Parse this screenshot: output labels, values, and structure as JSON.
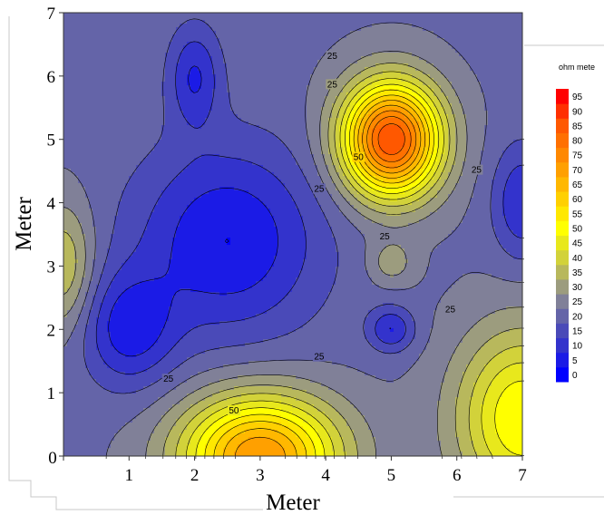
{
  "chart_data": {
    "type": "heatmap",
    "subtype": "filled-contour",
    "title": "",
    "xlabel": "Meter",
    "ylabel": "Meter",
    "xlim": [
      0,
      7
    ],
    "ylim": [
      0,
      7
    ],
    "x_ticks": [
      "0",
      "1",
      "2",
      "3",
      "4",
      "5",
      "6",
      "7"
    ],
    "y_ticks": [
      "0",
      "1",
      "2",
      "3",
      "4",
      "5",
      "6",
      "7"
    ],
    "grid": false,
    "legend_position": "right",
    "colorbar": {
      "title": "ohm mete",
      "levels": [
        0,
        5,
        10,
        15,
        20,
        25,
        30,
        35,
        40,
        45,
        50,
        55,
        60,
        65,
        70,
        75,
        80,
        85,
        90,
        95
      ],
      "labels": [
        "95",
        "90",
        "85",
        "80",
        "75",
        "70",
        "65",
        "60",
        "55",
        "50",
        "45",
        "40",
        "35",
        "30",
        "25",
        "20",
        "15",
        "10",
        "5",
        "0"
      ],
      "colors": [
        "#0000ff",
        "#1b1be6",
        "#3333cc",
        "#4a4ab8",
        "#6464a8",
        "#808098",
        "#9c9c7e",
        "#b8b85c",
        "#d2d23a",
        "#e8e81c",
        "#ffff00",
        "#ffe800",
        "#ffd000",
        "#ffb800",
        "#ffa000",
        "#ff8800",
        "#ff7000",
        "#ff5800",
        "#ff3000",
        "#ff0000"
      ]
    },
    "features": [
      {
        "type": "max",
        "x": 5.0,
        "y": 5.0,
        "value": 90,
        "sx": 0.75,
        "sy": 0.9
      },
      {
        "type": "max",
        "x": 3.0,
        "y": 0.0,
        "value": 75,
        "sx": 1.2,
        "sy": 0.95
      },
      {
        "type": "max",
        "x": 7.0,
        "y": 0.6,
        "value": 55,
        "sx": 1.0,
        "sy": 1.4
      },
      {
        "type": "max",
        "x": 5.0,
        "y": 3.05,
        "value": 33,
        "sx": 0.35,
        "sy": 0.35
      },
      {
        "type": "max",
        "x": 0.0,
        "y": 3.0,
        "value": 40,
        "sx": 0.45,
        "sy": 1.0
      },
      {
        "type": "min",
        "x": 2.5,
        "y": 3.4,
        "value": 5,
        "sx": 1.4,
        "sy": 1.5
      },
      {
        "type": "min",
        "x": 1.0,
        "y": 2.0,
        "value": 8,
        "sx": 0.7,
        "sy": 0.9
      },
      {
        "type": "min",
        "x": 2.0,
        "y": 6.0,
        "value": 10,
        "sx": 0.4,
        "sy": 0.8
      },
      {
        "type": "min",
        "x": 5.0,
        "y": 2.0,
        "value": 10,
        "sx": 0.35,
        "sy": 0.35
      },
      {
        "type": "min",
        "x": 7.0,
        "y": 4.0,
        "value": 10,
        "sx": 0.45,
        "sy": 0.9
      }
    ],
    "contour_labels": [
      {
        "text": "25",
        "x": 4.1,
        "y": 6.3
      },
      {
        "text": "50",
        "x": 4.5,
        "y": 4.7
      },
      {
        "text": "25",
        "x": 4.1,
        "y": 5.85
      },
      {
        "text": "25",
        "x": 6.3,
        "y": 4.5
      },
      {
        "text": "25",
        "x": 3.9,
        "y": 4.2
      },
      {
        "text": "25",
        "x": 4.9,
        "y": 3.45
      },
      {
        "text": "25",
        "x": 5.9,
        "y": 2.3
      },
      {
        "text": "25",
        "x": 3.9,
        "y": 1.55
      },
      {
        "text": "25",
        "x": 1.6,
        "y": 1.2
      },
      {
        "text": "50",
        "x": 2.6,
        "y": 0.7
      }
    ]
  }
}
